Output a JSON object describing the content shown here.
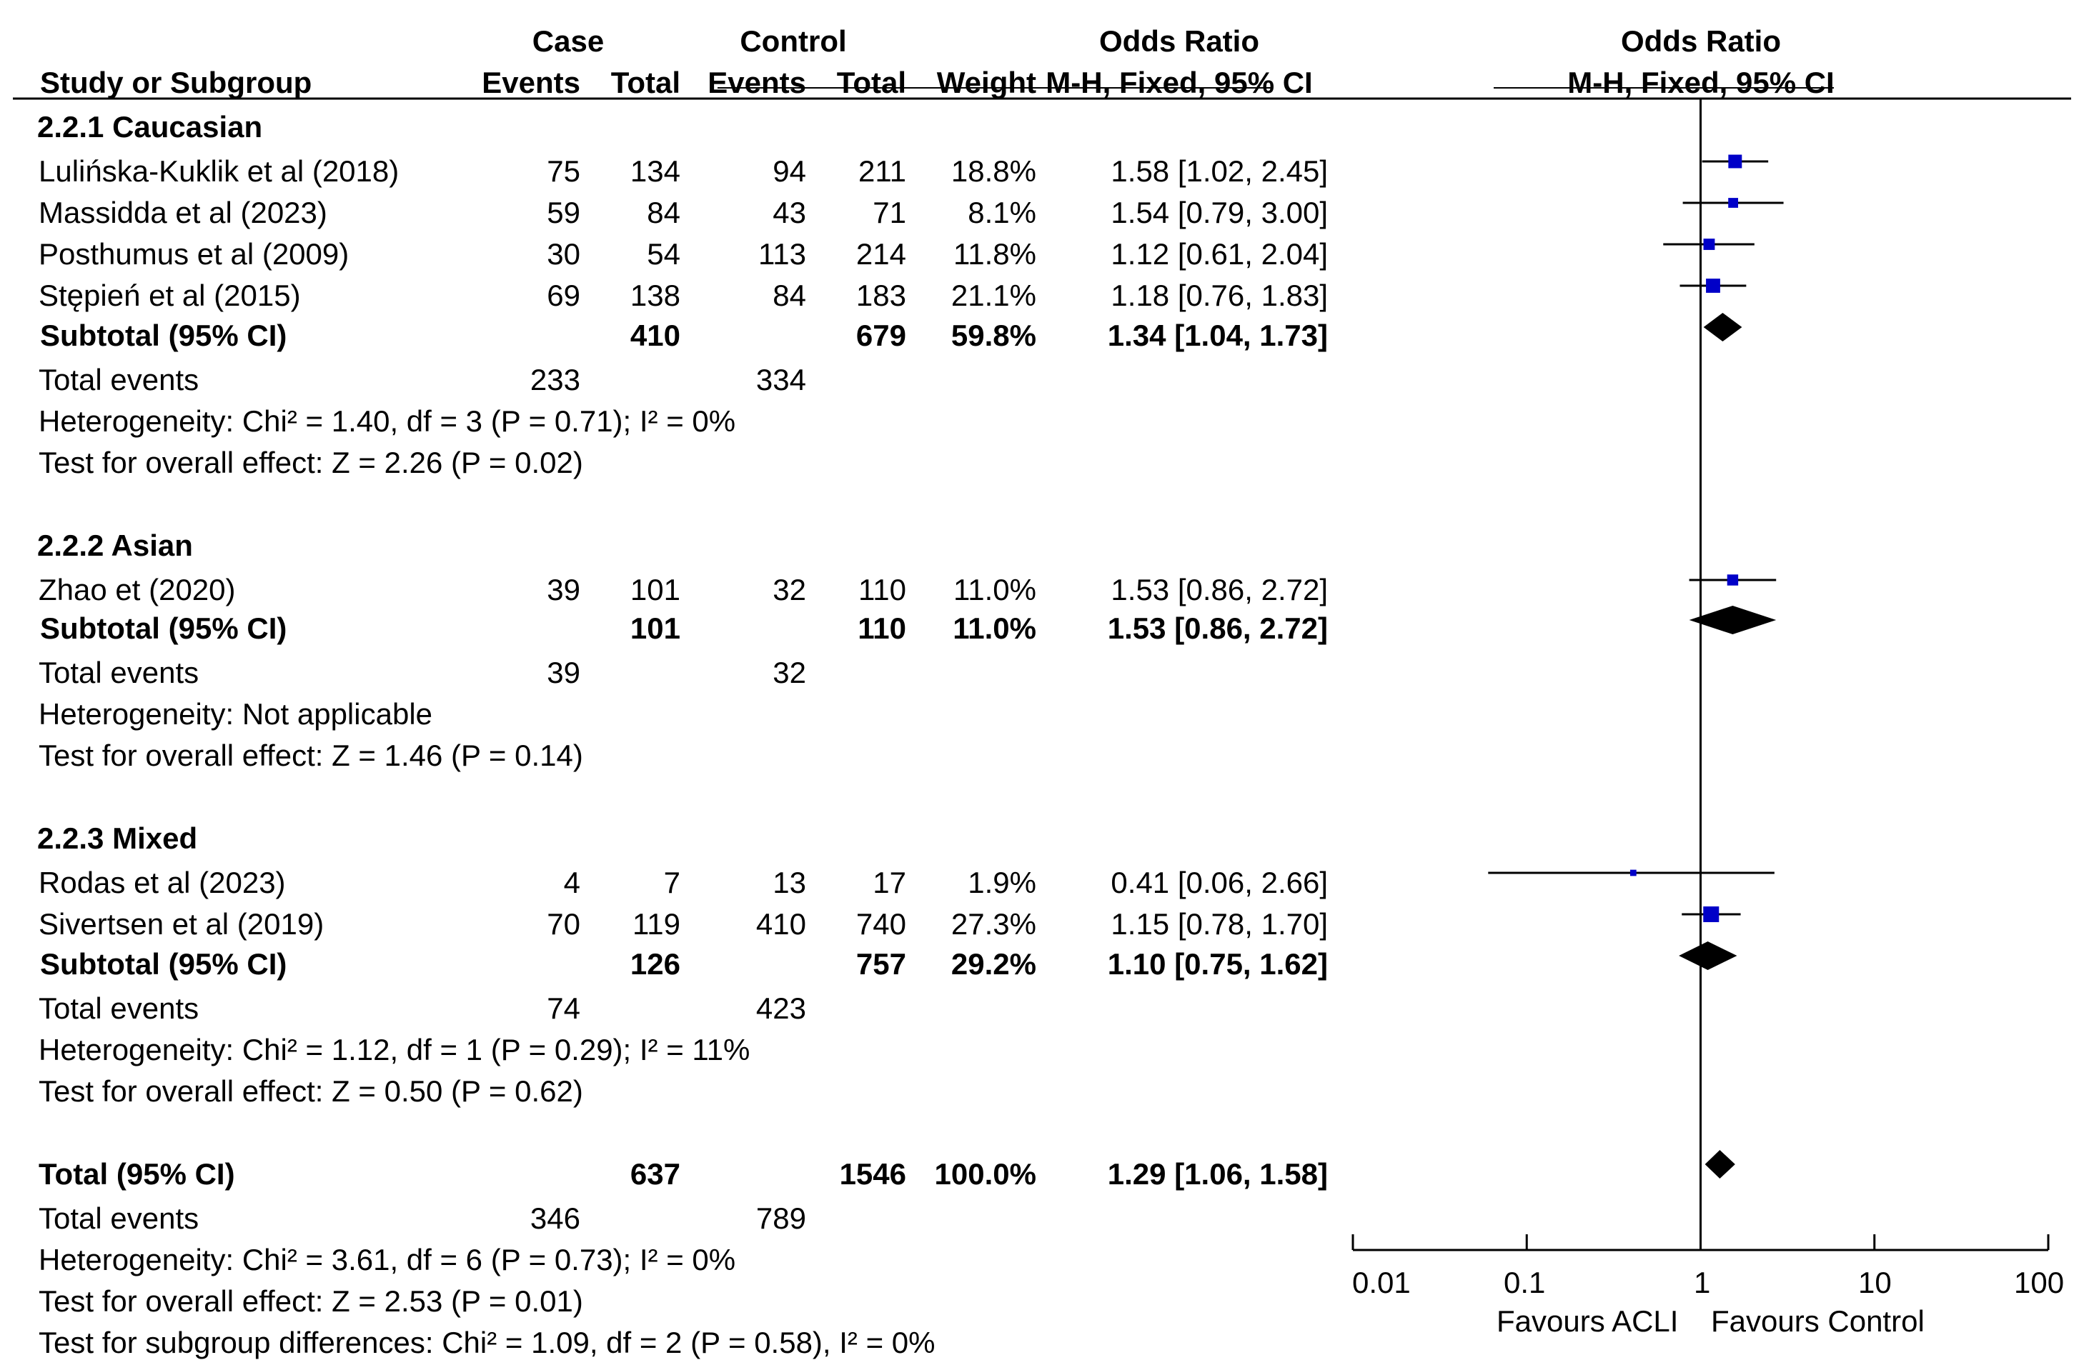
{
  "chart_data": {
    "type": "forest",
    "title": "Odds Ratio",
    "method": "M-H, Fixed, 95% CI",
    "header": {
      "study_col": "Study or Subgroup",
      "case_group": "Case",
      "control_group": "Control",
      "events": "Events",
      "total": "Total",
      "weight": "Weight",
      "or_col": "Odds Ratio",
      "or_method": "M-H, Fixed, 95% CI",
      "plot_title": "Odds Ratio",
      "plot_method": "M-H, Fixed, 95% CI"
    },
    "subgroups": [
      {
        "name": "2.2.1 Caucasian",
        "studies": [
          {
            "study": "Lulińska-Kuklik et al (2018)",
            "case_events": "75",
            "case_total": "134",
            "control_events": "94",
            "control_total": "211",
            "weight": "18.8%",
            "or_text": "1.58 [1.02, 2.45]",
            "or": 1.58,
            "lo": 1.02,
            "hi": 2.45,
            "w": 18.8
          },
          {
            "study": "Massidda et al (2023)",
            "case_events": "59",
            "case_total": "84",
            "control_events": "43",
            "control_total": "71",
            "weight": "8.1%",
            "or_text": "1.54 [0.79, 3.00]",
            "or": 1.54,
            "lo": 0.79,
            "hi": 3.0,
            "w": 8.1
          },
          {
            "study": "Posthumus et al (2009)",
            "case_events": "30",
            "case_total": "54",
            "control_events": "113",
            "control_total": "214",
            "weight": "11.8%",
            "or_text": "1.12 [0.61, 2.04]",
            "or": 1.12,
            "lo": 0.61,
            "hi": 2.04,
            "w": 11.8
          },
          {
            "study": "Stępień et al (2015)",
            "case_events": "69",
            "case_total": "138",
            "control_events": "84",
            "control_total": "183",
            "weight": "21.1%",
            "or_text": "1.18 [0.76, 1.83]",
            "or": 1.18,
            "lo": 0.76,
            "hi": 1.83,
            "w": 21.1
          }
        ],
        "subtotal": {
          "label": "Subtotal (95% CI)",
          "case_total": "410",
          "control_total": "679",
          "weight": "59.8%",
          "or_text": "1.34 [1.04, 1.73]",
          "or": 1.34,
          "lo": 1.04,
          "hi": 1.73
        },
        "total_events": {
          "label": "Total events",
          "case": "233",
          "control": "334"
        },
        "heterogeneity": "Heterogeneity: Chi² = 1.40, df = 3 (P = 0.71); I² = 0%",
        "overall_effect": "Test for overall effect: Z = 2.26 (P = 0.02)"
      },
      {
        "name": "2.2.2 Asian",
        "studies": [
          {
            "study": "Zhao et (2020)",
            "case_events": "39",
            "case_total": "101",
            "control_events": "32",
            "control_total": "110",
            "weight": "11.0%",
            "or_text": "1.53 [0.86, 2.72]",
            "or": 1.53,
            "lo": 0.86,
            "hi": 2.72,
            "w": 11.0
          }
        ],
        "subtotal": {
          "label": "Subtotal (95% CI)",
          "case_total": "101",
          "control_total": "110",
          "weight": "11.0%",
          "or_text": "1.53 [0.86, 2.72]",
          "or": 1.53,
          "lo": 0.86,
          "hi": 2.72
        },
        "total_events": {
          "label": "Total events",
          "case": "39",
          "control": "32"
        },
        "heterogeneity": "Heterogeneity: Not applicable",
        "overall_effect": "Test for overall effect: Z = 1.46 (P = 0.14)"
      },
      {
        "name": "2.2.3 Mixed",
        "studies": [
          {
            "study": "Rodas et al (2023)",
            "case_events": "4",
            "case_total": "7",
            "control_events": "13",
            "control_total": "17",
            "weight": "1.9%",
            "or_text": "0.41 [0.06, 2.66]",
            "or": 0.41,
            "lo": 0.06,
            "hi": 2.66,
            "w": 1.9
          },
          {
            "study": "Sivertsen et al (2019)",
            "case_events": "70",
            "case_total": "119",
            "control_events": "410",
            "control_total": "740",
            "weight": "27.3%",
            "or_text": "1.15 [0.78, 1.70]",
            "or": 1.15,
            "lo": 0.78,
            "hi": 1.7,
            "w": 27.3
          }
        ],
        "subtotal": {
          "label": "Subtotal (95% CI)",
          "case_total": "126",
          "control_total": "757",
          "weight": "29.2%",
          "or_text": "1.10 [0.75, 1.62]",
          "or": 1.1,
          "lo": 0.75,
          "hi": 1.62
        },
        "total_events": {
          "label": "Total events",
          "case": "74",
          "control": "423"
        },
        "heterogeneity": "Heterogeneity: Chi² = 1.12, df = 1 (P = 0.29); I² = 11%",
        "overall_effect": "Test for overall effect: Z = 0.50 (P = 0.62)"
      }
    ],
    "overall": {
      "label": "Total (95% CI)",
      "case_total": "637",
      "control_total": "1546",
      "weight": "100.0%",
      "or_text": "1.29 [1.06, 1.58]",
      "or": 1.29,
      "lo": 1.06,
      "hi": 1.58,
      "total_events": {
        "label": "Total events",
        "case": "346",
        "control": "789"
      },
      "heterogeneity": "Heterogeneity: Chi² = 3.61, df = 6 (P = 0.73); I² = 0%",
      "overall_effect": "Test for overall effect: Z = 2.53 (P = 0.01)",
      "subgroup_diff": "Test for subgroup differences: Chi² = 1.09, df = 2 (P = 0.58), I² = 0%"
    },
    "x_axis": {
      "scale": "log",
      "xlim": [
        0.01,
        100
      ],
      "ticks": [
        0.01,
        0.1,
        1,
        10,
        100
      ],
      "tick_labels": [
        "0.01",
        "0.1",
        "1",
        "10",
        "100"
      ],
      "null_value": 1,
      "favours_left": "Favours ACLI",
      "favours_right": "Favours Control"
    },
    "colors": {
      "study_marker": "#0000c8",
      "diamond": "#000000",
      "line": "#000000"
    }
  }
}
